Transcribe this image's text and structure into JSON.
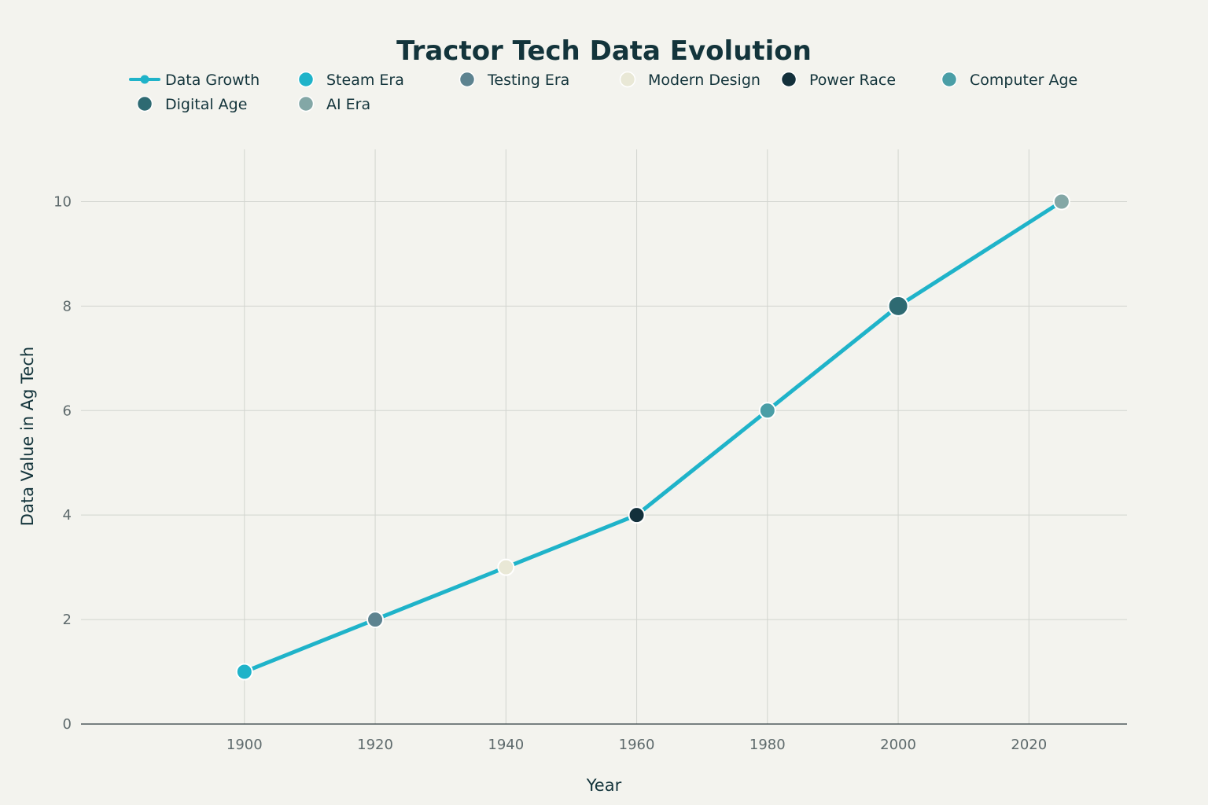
{
  "chart_data": {
    "type": "line",
    "title": "Tractor Tech Data Evolution",
    "xlabel": "Year",
    "ylabel": "Data Value in Ag Tech",
    "xlim": [
      1875,
      2035
    ],
    "ylim": [
      0,
      11
    ],
    "x_ticks": [
      1900,
      1920,
      1940,
      1960,
      1980,
      2000,
      2020
    ],
    "y_ticks": [
      0,
      2,
      4,
      6,
      8,
      10
    ],
    "grid": true,
    "legend_position": "top",
    "line_series": {
      "name": "Data Growth",
      "color": "#1fb3c9",
      "x": [
        1900,
        1920,
        1940,
        1960,
        1980,
        2000,
        2025
      ],
      "y": [
        1,
        2,
        3,
        4,
        6,
        8,
        10
      ]
    },
    "marker_series": [
      {
        "name": "Steam Era",
        "color": "#1fb3c9",
        "x": 1900,
        "y": 1,
        "size": "normal"
      },
      {
        "name": "Testing Era",
        "color": "#5d8390",
        "x": 1920,
        "y": 2,
        "size": "normal"
      },
      {
        "name": "Modern Design",
        "color": "#e9e8d6",
        "x": 1940,
        "y": 3,
        "size": "normal"
      },
      {
        "name": "Power Race",
        "color": "#13303b",
        "x": 1960,
        "y": 4,
        "size": "normal"
      },
      {
        "name": "Computer Age",
        "color": "#4a9ea6",
        "x": 1980,
        "y": 6,
        "size": "normal"
      },
      {
        "name": "Digital Age",
        "color": "#2e6a72",
        "x": 2000,
        "y": 8,
        "size": "large"
      },
      {
        "name": "AI Era",
        "color": "#83a7a6",
        "x": 2025,
        "y": 10,
        "size": "normal"
      }
    ]
  }
}
